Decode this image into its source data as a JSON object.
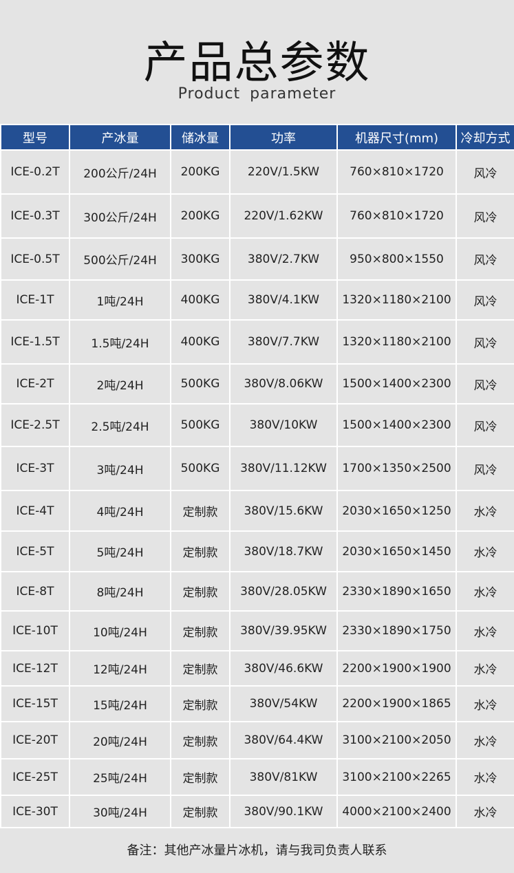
{
  "title": "产品总参数",
  "subtitle": "Product parameter",
  "colors": {
    "header_bg": "#234f93",
    "page_bg": "#e4e4e4"
  },
  "table": {
    "headers": [
      "型号",
      "产冰量",
      "储冰量",
      "功率",
      "机器尺寸(mm)",
      "冷却方式"
    ],
    "rows": [
      [
        "ICE-0.2T",
        "200公斤/24H",
        "200KG",
        "220V/1.5KW",
        "760×810×1720",
        "风冷"
      ],
      [
        "ICE-0.3T",
        "300公斤/24H",
        "200KG",
        "220V/1.62KW",
        "760×810×1720",
        "风冷"
      ],
      [
        "ICE-0.5T",
        "500公斤/24H",
        "300KG",
        "380V/2.7KW",
        "950×800×1550",
        "风冷"
      ],
      [
        "ICE-1T",
        "1吨/24H",
        "400KG",
        "380V/4.1KW",
        "1320×1180×2100",
        "风冷"
      ],
      [
        "ICE-1.5T",
        "1.5吨/24H",
        "400KG",
        "380V/7.7KW",
        "1320×1180×2100",
        "风冷"
      ],
      [
        "ICE-2T",
        "2吨/24H",
        "500KG",
        "380V/8.06KW",
        "1500×1400×2300",
        "风冷"
      ],
      [
        "ICE-2.5T",
        "2.5吨/24H",
        "500KG",
        "380V/10KW",
        "1500×1400×2300",
        "风冷"
      ],
      [
        "ICE-3T",
        "3吨/24H",
        "500KG",
        "380V/11.12KW",
        "1700×1350×2500",
        "风冷"
      ],
      [
        "ICE-4T",
        "4吨/24H",
        "定制款",
        "380V/15.6KW",
        "2030×1650×1250",
        "水冷"
      ],
      [
        "ICE-5T",
        "5吨/24H",
        "定制款",
        "380V/18.7KW",
        "2030×1650×1450",
        "水冷"
      ],
      [
        "ICE-8T",
        "8吨/24H",
        "定制款",
        "380V/28.05KW",
        "2330×1890×1650",
        "水冷"
      ],
      [
        "ICE-10T",
        "10吨/24H",
        "定制款",
        "380V/39.95KW",
        "2330×1890×1750",
        "水冷"
      ],
      [
        "ICE-12T",
        "12吨/24H",
        "定制款",
        "380V/46.6KW",
        "2200×1900×1900",
        "水冷"
      ],
      [
        "ICE-15T",
        "15吨/24H",
        "定制款",
        "380V/54KW",
        "2200×1900×1865",
        "水冷"
      ],
      [
        "ICE-20T",
        "20吨/24H",
        "定制款",
        "380V/64.4KW",
        "3100×2100×2050",
        "水冷"
      ],
      [
        "ICE-25T",
        "25吨/24H",
        "定制款",
        "380V/81KW",
        "3100×2100×2265",
        "水冷"
      ],
      [
        "ICE-30T",
        "30吨/24H",
        "定制款",
        "380V/90.1KW",
        "4000×2100×2400",
        "水冷"
      ]
    ]
  },
  "note": "备注：其他产冰量片冰机，请与我司负责人联系"
}
